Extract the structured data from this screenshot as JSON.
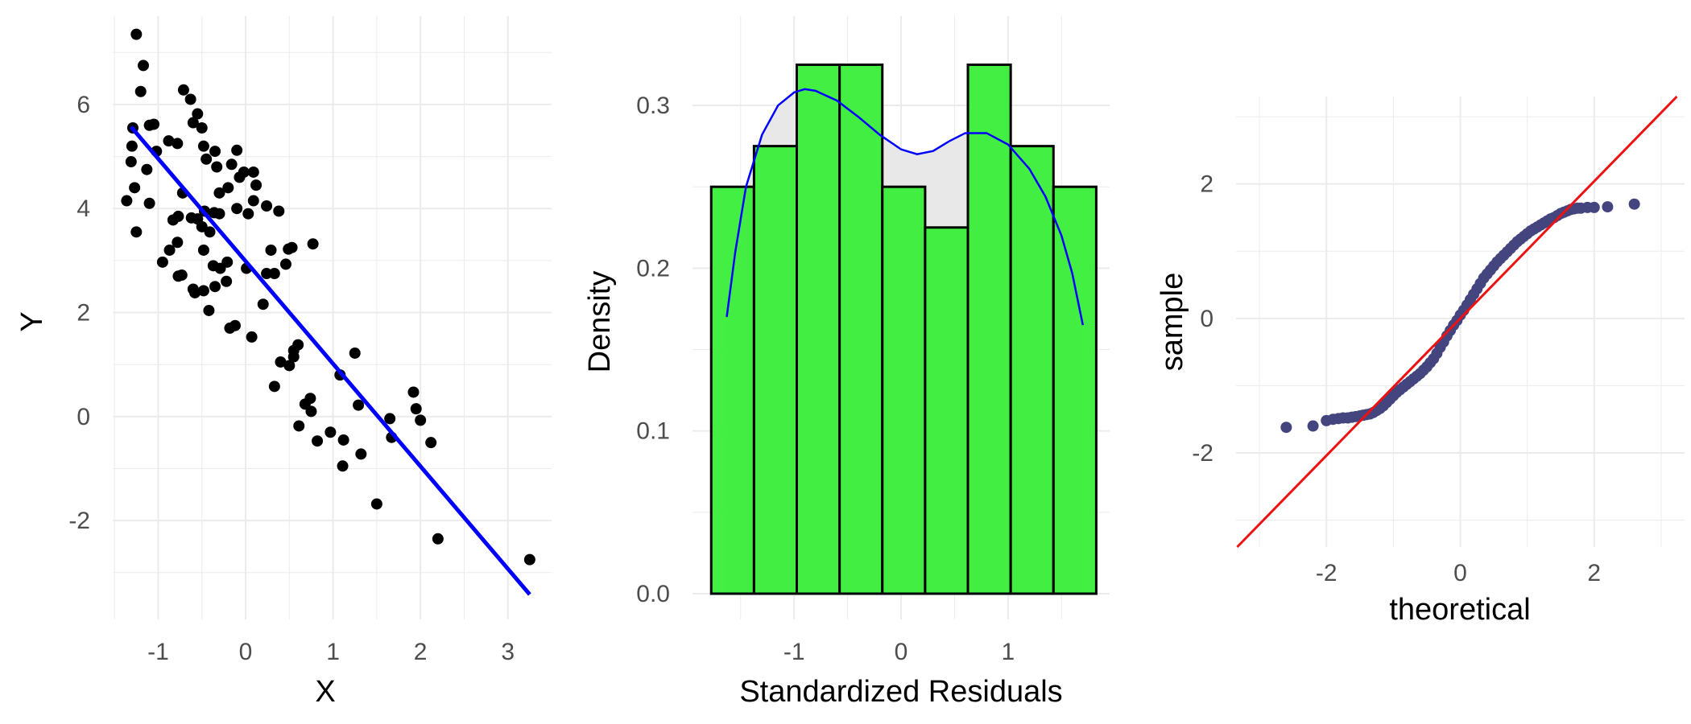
{
  "chart_data": [
    {
      "type": "scatter",
      "xlabel": "X",
      "ylabel": "Y",
      "xlim": [
        -1.52,
        3.5
      ],
      "ylim": [
        -3.9,
        7.7
      ],
      "xticks": [
        -1,
        0,
        1,
        2,
        3
      ],
      "yticks": [
        -2,
        0,
        2,
        4,
        6
      ],
      "grid": true,
      "point_color": "#000000",
      "line_color": "#0000ff",
      "points": [
        [
          -1.25,
          7.35
        ],
        [
          -1.17,
          6.75
        ],
        [
          -1.2,
          6.25
        ],
        [
          -1.1,
          5.6
        ],
        [
          -1.05,
          5.62
        ],
        [
          -1.29,
          5.55
        ],
        [
          -1.3,
          5.2
        ],
        [
          -1.02,
          5.1
        ],
        [
          -1.31,
          4.9
        ],
        [
          -1.13,
          4.75
        ],
        [
          -1.27,
          4.4
        ],
        [
          -1.36,
          4.15
        ],
        [
          -1.1,
          4.1
        ],
        [
          -1.25,
          3.55
        ],
        [
          -0.71,
          6.28
        ],
        [
          -0.63,
          6.1
        ],
        [
          -0.55,
          5.82
        ],
        [
          -0.6,
          5.65
        ],
        [
          -0.5,
          5.55
        ],
        [
          -0.88,
          5.3
        ],
        [
          -0.78,
          5.25
        ],
        [
          -0.48,
          5.2
        ],
        [
          -0.35,
          5.1
        ],
        [
          -0.1,
          5.12
        ],
        [
          -0.45,
          4.95
        ],
        [
          -0.16,
          4.85
        ],
        [
          -0.33,
          4.8
        ],
        [
          -0.02,
          4.7
        ],
        [
          -0.07,
          4.6
        ],
        [
          0.09,
          4.7
        ],
        [
          0.12,
          4.45
        ],
        [
          -0.2,
          4.4
        ],
        [
          -0.3,
          4.3
        ],
        [
          -0.72,
          4.3
        ],
        [
          0.09,
          4.15
        ],
        [
          -0.1,
          4.0
        ],
        [
          -0.47,
          3.95
        ],
        [
          0.03,
          3.9
        ],
        [
          0.24,
          4.05
        ],
        [
          -0.62,
          3.82
        ],
        [
          -0.55,
          3.8
        ],
        [
          -0.77,
          3.85
        ],
        [
          -0.83,
          3.78
        ],
        [
          -0.36,
          3.92
        ],
        [
          -0.3,
          3.9
        ],
        [
          0.38,
          3.95
        ],
        [
          -0.5,
          3.65
        ],
        [
          0.77,
          3.32
        ],
        [
          -0.41,
          3.55
        ],
        [
          -0.78,
          3.35
        ],
        [
          -0.87,
          3.2
        ],
        [
          -0.48,
          3.2
        ],
        [
          -0.95,
          2.97
        ],
        [
          -0.21,
          2.97
        ],
        [
          -0.29,
          2.85
        ],
        [
          -0.37,
          2.9
        ],
        [
          0.01,
          2.85
        ],
        [
          0.29,
          3.2
        ],
        [
          0.49,
          3.22
        ],
        [
          0.53,
          3.25
        ],
        [
          0.46,
          2.93
        ],
        [
          -0.73,
          2.72
        ],
        [
          -0.77,
          2.7
        ],
        [
          -0.6,
          2.45
        ],
        [
          -0.48,
          2.42
        ],
        [
          -0.58,
          2.38
        ],
        [
          -0.35,
          2.5
        ],
        [
          -0.22,
          2.6
        ],
        [
          0.24,
          2.75
        ],
        [
          0.33,
          2.75
        ],
        [
          0.2,
          2.16
        ],
        [
          -0.42,
          2.04
        ],
        [
          -0.18,
          1.7
        ],
        [
          -0.12,
          1.75
        ],
        [
          0.07,
          1.53
        ],
        [
          0.4,
          1.05
        ],
        [
          0.55,
          1.15
        ],
        [
          0.55,
          1.27
        ],
        [
          0.6,
          1.38
        ],
        [
          0.5,
          0.98
        ],
        [
          0.33,
          0.58
        ],
        [
          0.68,
          0.24
        ],
        [
          0.75,
          0.1
        ],
        [
          0.74,
          0.35
        ],
        [
          0.61,
          -0.18
        ],
        [
          0.82,
          -0.47
        ],
        [
          0.97,
          -0.3
        ],
        [
          1.08,
          0.8
        ],
        [
          1.25,
          1.22
        ],
        [
          1.29,
          0.22
        ],
        [
          1.12,
          -0.45
        ],
        [
          1.11,
          -0.95
        ],
        [
          1.32,
          -0.72
        ],
        [
          1.5,
          -1.68
        ],
        [
          1.65,
          -0.04
        ],
        [
          1.92,
          0.47
        ],
        [
          1.95,
          0.15
        ],
        [
          2.0,
          -0.07
        ],
        [
          1.67,
          -0.4
        ],
        [
          2.12,
          -0.5
        ],
        [
          2.2,
          -2.35
        ],
        [
          3.25,
          -2.75
        ]
      ],
      "fit_line": {
        "x": [
          -1.31,
          3.25
        ],
        "y": [
          5.57,
          -3.42
        ]
      }
    },
    {
      "type": "bar",
      "xlabel": "Standardized Residuals",
      "ylabel": "Density",
      "xlim": [
        -1.95,
        1.95
      ],
      "ylim": [
        0,
        0.345
      ],
      "xticks": [
        -1,
        0,
        1
      ],
      "yticks": [
        0.0,
        0.1,
        0.2,
        0.3
      ],
      "ytick_labels": [
        "0.0",
        "0.1",
        "0.2",
        "0.3"
      ],
      "grid": true,
      "bar_color": "#33ee33",
      "density_fill_color": "#e8e8e8",
      "density_line_color": "#0000ff",
      "bins": [
        {
          "x0": -1.775,
          "x1": -1.375,
          "value": 0.25
        },
        {
          "x0": -1.375,
          "x1": -0.975,
          "value": 0.275
        },
        {
          "x0": -0.975,
          "x1": -0.575,
          "value": 0.325
        },
        {
          "x0": -0.575,
          "x1": -0.175,
          "value": 0.325
        },
        {
          "x0": -0.175,
          "x1": 0.225,
          "value": 0.25
        },
        {
          "x0": 0.225,
          "x1": 0.625,
          "value": 0.225
        },
        {
          "x0": 0.625,
          "x1": 1.025,
          "value": 0.325
        },
        {
          "x0": 1.025,
          "x1": 1.425,
          "value": 0.275
        },
        {
          "x0": 1.425,
          "x1": 1.825,
          "value": 0.25
        }
      ],
      "density_curve": {
        "x": [
          -1.63,
          -1.55,
          -1.45,
          -1.3,
          -1.15,
          -1.0,
          -0.9,
          -0.8,
          -0.6,
          -0.4,
          -0.2,
          0.0,
          0.15,
          0.3,
          0.45,
          0.6,
          0.8,
          1.0,
          1.2,
          1.35,
          1.5,
          1.6,
          1.7
        ],
        "y": [
          0.17,
          0.21,
          0.25,
          0.282,
          0.3,
          0.308,
          0.31,
          0.309,
          0.303,
          0.293,
          0.282,
          0.273,
          0.27,
          0.272,
          0.278,
          0.283,
          0.283,
          0.276,
          0.261,
          0.244,
          0.22,
          0.197,
          0.165
        ]
      }
    },
    {
      "type": "scatter",
      "xlabel": "theoretical",
      "ylabel": "sample",
      "xlim": [
        -3.35,
        3.35
      ],
      "ylim": [
        -3.4,
        3.3
      ],
      "xticks": [
        -2,
        0,
        2
      ],
      "yticks": [
        -2,
        0,
        2
      ],
      "grid": true,
      "point_color": "#44447f",
      "line_color": "#ee1111",
      "reference_line": {
        "slope": 1.02,
        "intercept": 0.0
      },
      "points": [
        [
          -2.6,
          -1.62
        ],
        [
          -2.2,
          -1.6
        ],
        [
          -2.0,
          -1.52
        ],
        [
          -1.9,
          -1.5
        ],
        [
          -1.82,
          -1.49
        ],
        [
          -1.75,
          -1.48
        ],
        [
          -1.68,
          -1.48
        ],
        [
          -1.62,
          -1.47
        ],
        [
          -1.56,
          -1.46
        ],
        [
          -1.5,
          -1.45
        ],
        [
          -1.45,
          -1.44
        ],
        [
          -1.4,
          -1.43
        ],
        [
          -1.35,
          -1.42
        ],
        [
          -1.3,
          -1.4
        ],
        [
          -1.25,
          -1.37
        ],
        [
          -1.2,
          -1.34
        ],
        [
          -1.15,
          -1.3
        ],
        [
          -1.1,
          -1.25
        ],
        [
          -1.05,
          -1.2
        ],
        [
          -1.0,
          -1.15
        ],
        [
          -0.95,
          -1.1
        ],
        [
          -0.9,
          -1.06
        ],
        [
          -0.85,
          -1.02
        ],
        [
          -0.8,
          -0.98
        ],
        [
          -0.75,
          -0.94
        ],
        [
          -0.7,
          -0.9
        ],
        [
          -0.65,
          -0.86
        ],
        [
          -0.6,
          -0.82
        ],
        [
          -0.55,
          -0.77
        ],
        [
          -0.5,
          -0.72
        ],
        [
          -0.45,
          -0.66
        ],
        [
          -0.4,
          -0.6
        ],
        [
          -0.35,
          -0.52
        ],
        [
          -0.3,
          -0.43
        ],
        [
          -0.25,
          -0.35
        ],
        [
          -0.2,
          -0.26
        ],
        [
          -0.15,
          -0.18
        ],
        [
          -0.1,
          -0.1
        ],
        [
          -0.05,
          -0.03
        ],
        [
          0.0,
          0.05
        ],
        [
          0.05,
          0.12
        ],
        [
          0.1,
          0.2
        ],
        [
          0.15,
          0.28
        ],
        [
          0.2,
          0.36
        ],
        [
          0.25,
          0.44
        ],
        [
          0.3,
          0.52
        ],
        [
          0.35,
          0.6
        ],
        [
          0.4,
          0.66
        ],
        [
          0.45,
          0.72
        ],
        [
          0.5,
          0.78
        ],
        [
          0.55,
          0.84
        ],
        [
          0.6,
          0.89
        ],
        [
          0.65,
          0.94
        ],
        [
          0.7,
          0.99
        ],
        [
          0.75,
          1.04
        ],
        [
          0.8,
          1.09
        ],
        [
          0.85,
          1.14
        ],
        [
          0.9,
          1.18
        ],
        [
          0.95,
          1.22
        ],
        [
          1.0,
          1.26
        ],
        [
          1.05,
          1.3
        ],
        [
          1.1,
          1.33
        ],
        [
          1.15,
          1.36
        ],
        [
          1.2,
          1.39
        ],
        [
          1.25,
          1.42
        ],
        [
          1.3,
          1.45
        ],
        [
          1.35,
          1.48
        ],
        [
          1.4,
          1.5
        ],
        [
          1.45,
          1.53
        ],
        [
          1.5,
          1.56
        ],
        [
          1.55,
          1.58
        ],
        [
          1.6,
          1.6
        ],
        [
          1.65,
          1.62
        ],
        [
          1.7,
          1.63
        ],
        [
          1.75,
          1.64
        ],
        [
          1.8,
          1.64
        ],
        [
          1.9,
          1.65
        ],
        [
          2.0,
          1.65
        ],
        [
          2.2,
          1.66
        ],
        [
          2.6,
          1.7
        ]
      ]
    }
  ]
}
